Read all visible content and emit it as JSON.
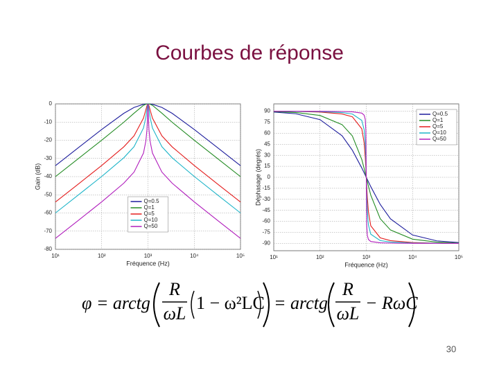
{
  "slide_title": "Courbes de réponse",
  "chart_data": [
    {
      "type": "line",
      "log_x": true,
      "grid": true,
      "legend": "lower center",
      "xlabel": "Fréquence (Hz)",
      "ylabel": "Gain (dB)",
      "x": [
        10,
        30,
        100,
        300,
        500,
        800,
        900,
        950,
        980,
        1000,
        1020,
        1053,
        1111,
        1250,
        2000,
        3333,
        10000,
        33333,
        100000
      ],
      "xlim": [
        10,
        100000
      ],
      "xticks": [
        {
          "value": 10,
          "label": "10¹"
        },
        {
          "value": 100,
          "label": "10²"
        },
        {
          "value": 1000,
          "label": "10³"
        },
        {
          "value": 10000,
          "label": "10⁴"
        },
        {
          "value": 100000,
          "label": "10⁵"
        }
      ],
      "ylim": [
        -80,
        0
      ],
      "yticks": [
        0,
        -10,
        -20,
        -30,
        -40,
        -50,
        -60,
        -70,
        -80
      ],
      "series": [
        {
          "name": "Q=0.5",
          "color": "#1c1c9c",
          "values": [
            -33.98,
            -24.45,
            -14.07,
            -5.19,
            -1.94,
            -0.21,
            -0.05,
            -0.01,
            0,
            0,
            0,
            -0.01,
            -0.05,
            -0.21,
            -1.94,
            -5.19,
            -14.07,
            -24.45,
            -33.98
          ]
        },
        {
          "name": "Q=1",
          "color": "#228b22",
          "values": [
            -40,
            -30.45,
            -19.96,
            -10.09,
            -5.12,
            -0.8,
            -0.19,
            -0.05,
            -0.01,
            0,
            -0.01,
            -0.05,
            -0.19,
            -0.8,
            -5.12,
            -10.09,
            -19.96,
            -30.45,
            -40
          ]
        },
        {
          "name": "Q=5",
          "color": "#e41c1c",
          "values": [
            -53.98,
            -44.44,
            -33.89,
            -23.64,
            -17.58,
            -7.83,
            -3.25,
            -1.01,
            -0.17,
            0,
            -0.17,
            -1.01,
            -3.25,
            -7.83,
            -17.58,
            -23.64,
            -33.89,
            -44.44,
            -53.98
          ]
        },
        {
          "name": "Q=10",
          "color": "#1cb4c8",
          "values": [
            -60,
            -50.45,
            -39.91,
            -29.64,
            -23.54,
            -13.27,
            -7.36,
            -3.12,
            -0.66,
            0,
            -0.66,
            -3.12,
            -7.36,
            -13.27,
            -23.54,
            -29.64,
            -39.91,
            -50.45,
            -60
          ]
        },
        {
          "name": "Q=50",
          "color": "#b01cbc",
          "values": [
            -73.98,
            -64.44,
            -53.89,
            -43.62,
            -37.5,
            -27.05,
            -20.51,
            -14.36,
            -7.06,
            0,
            -7.06,
            -14.36,
            -20.51,
            -27.05,
            -37.5,
            -43.62,
            -53.89,
            -64.44,
            -73.98
          ]
        }
      ]
    },
    {
      "type": "line",
      "log_x": true,
      "grid": true,
      "legend": "upper right",
      "xlabel": "Fréquence (Hz)",
      "ylabel": "Déphasage (degrés)",
      "x": [
        10,
        30,
        100,
        300,
        500,
        800,
        900,
        950,
        980,
        1000,
        1020,
        1053,
        1111,
        1250,
        2000,
        3333,
        10000,
        33333,
        100000
      ],
      "xlim": [
        10,
        100000
      ],
      "xticks": [
        {
          "value": 10,
          "label": "10¹"
        },
        {
          "value": 100,
          "label": "10²"
        },
        {
          "value": 1000,
          "label": "10³"
        },
        {
          "value": 10000,
          "label": "10⁴"
        },
        {
          "value": 100000,
          "label": "10⁵"
        }
      ],
      "ylim": [
        -100,
        100
      ],
      "yticks": [
        90,
        75,
        60,
        45,
        30,
        15,
        0,
        -15,
        -30,
        -45,
        -60,
        -75,
        -90
      ],
      "series": [
        {
          "name": "Q=0.5",
          "color": "#1c1c9c",
          "values": [
            88.85,
            86.57,
            78.58,
            56.6,
            36.87,
            12.68,
            6.03,
            2.94,
            1.16,
            0,
            -1.16,
            -2.94,
            -6.03,
            -12.68,
            -36.87,
            -56.6,
            -78.58,
            -86.57,
            -88.85
          ]
        },
        {
          "name": "Q=1",
          "color": "#228b22",
          "values": [
            89.43,
            88.28,
            84.23,
            71.75,
            56.31,
            24.23,
            11.91,
            5.86,
            2.31,
            0,
            -2.31,
            -5.86,
            -11.91,
            -24.23,
            -56.31,
            -71.75,
            -84.23,
            -88.28,
            -89.43
          ]
        },
        {
          "name": "Q=5",
          "color": "#e41c1c",
          "values": [
            89.89,
            89.66,
            88.84,
            86.23,
            82.41,
            66.04,
            46.56,
            27.16,
            11.42,
            0,
            -11.42,
            -27.16,
            -46.56,
            -66.04,
            -82.41,
            -86.23,
            -88.84,
            -89.66,
            -89.89
          ]
        },
        {
          "name": "Q=10",
          "color": "#1cb4c8",
          "values": [
            89.94,
            89.83,
            89.42,
            88.11,
            86.19,
            77.47,
            64.65,
            45.73,
            22,
            0,
            -22,
            -45.73,
            -64.65,
            -77.47,
            -86.19,
            -88.11,
            -89.42,
            -89.83,
            -89.94
          ]
        },
        {
          "name": "Q=50",
          "color": "#b01cbc",
          "values": [
            89.99,
            89.97,
            89.88,
            89.62,
            89.24,
            87.46,
            84.59,
            78.97,
            63.66,
            0,
            -63.66,
            -78.97,
            -84.59,
            -87.46,
            -89.24,
            -89.62,
            -89.88,
            -89.97,
            -89.99
          ]
        }
      ]
    }
  ],
  "formula": {
    "lhs": "φ = arctg",
    "num1": "R",
    "den1": "ωL",
    "inner": "1 − ω²LC",
    "mid": "= arctg",
    "num2": "R",
    "den2": "ωL",
    "tail": "− RωC"
  },
  "page_number": 30
}
